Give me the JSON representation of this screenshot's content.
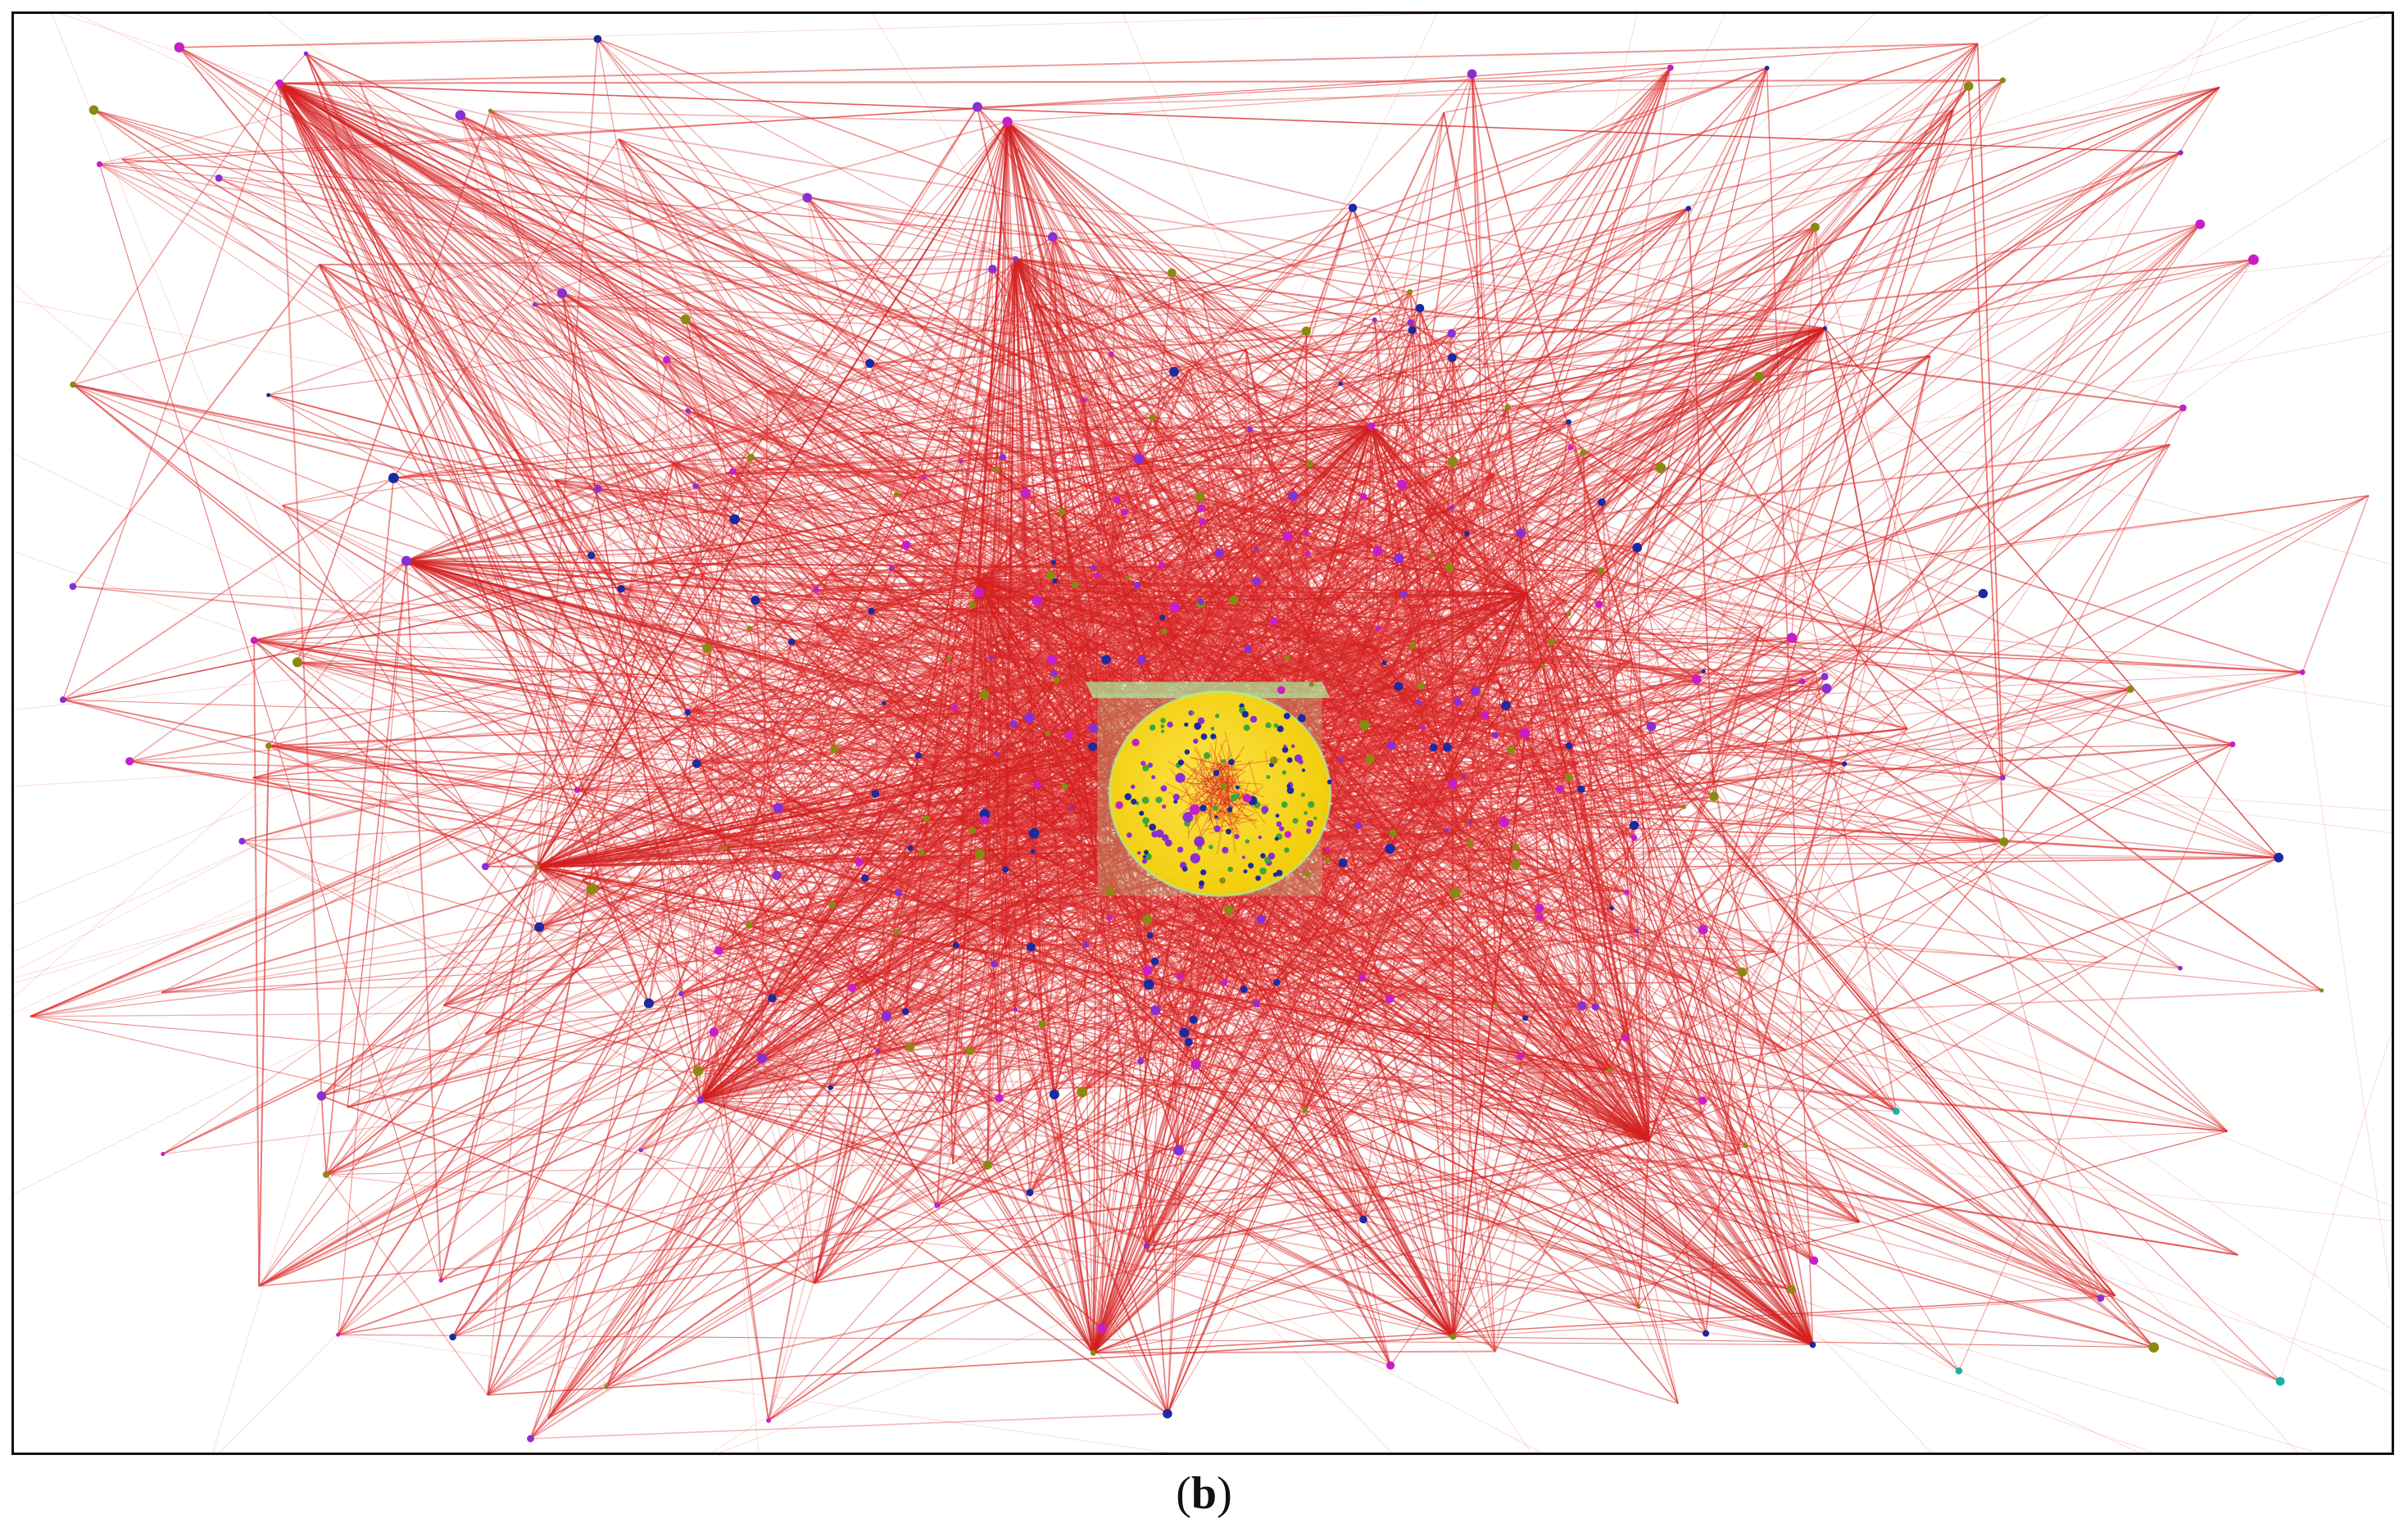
{
  "figure": {
    "caption_open": "(",
    "caption_letter": "b",
    "caption_close": ")"
  },
  "colors": {
    "edge": "#e23a3a",
    "edge_dense": "#d42020",
    "core_fill": "#f3d000",
    "core_highlight": "#ffe94a",
    "core_plane": "#a8f0a0",
    "node_purple": "#8a2fd1",
    "node_magenta": "#c81ec8",
    "node_navy": "#1c2aa0",
    "node_olive": "#8a8a10",
    "node_teal": "#1ab0a8",
    "node_green": "#3aa83a"
  },
  "icons": {
    "core": "yellow-sphere-cluster",
    "hub": "hub-node"
  }
}
